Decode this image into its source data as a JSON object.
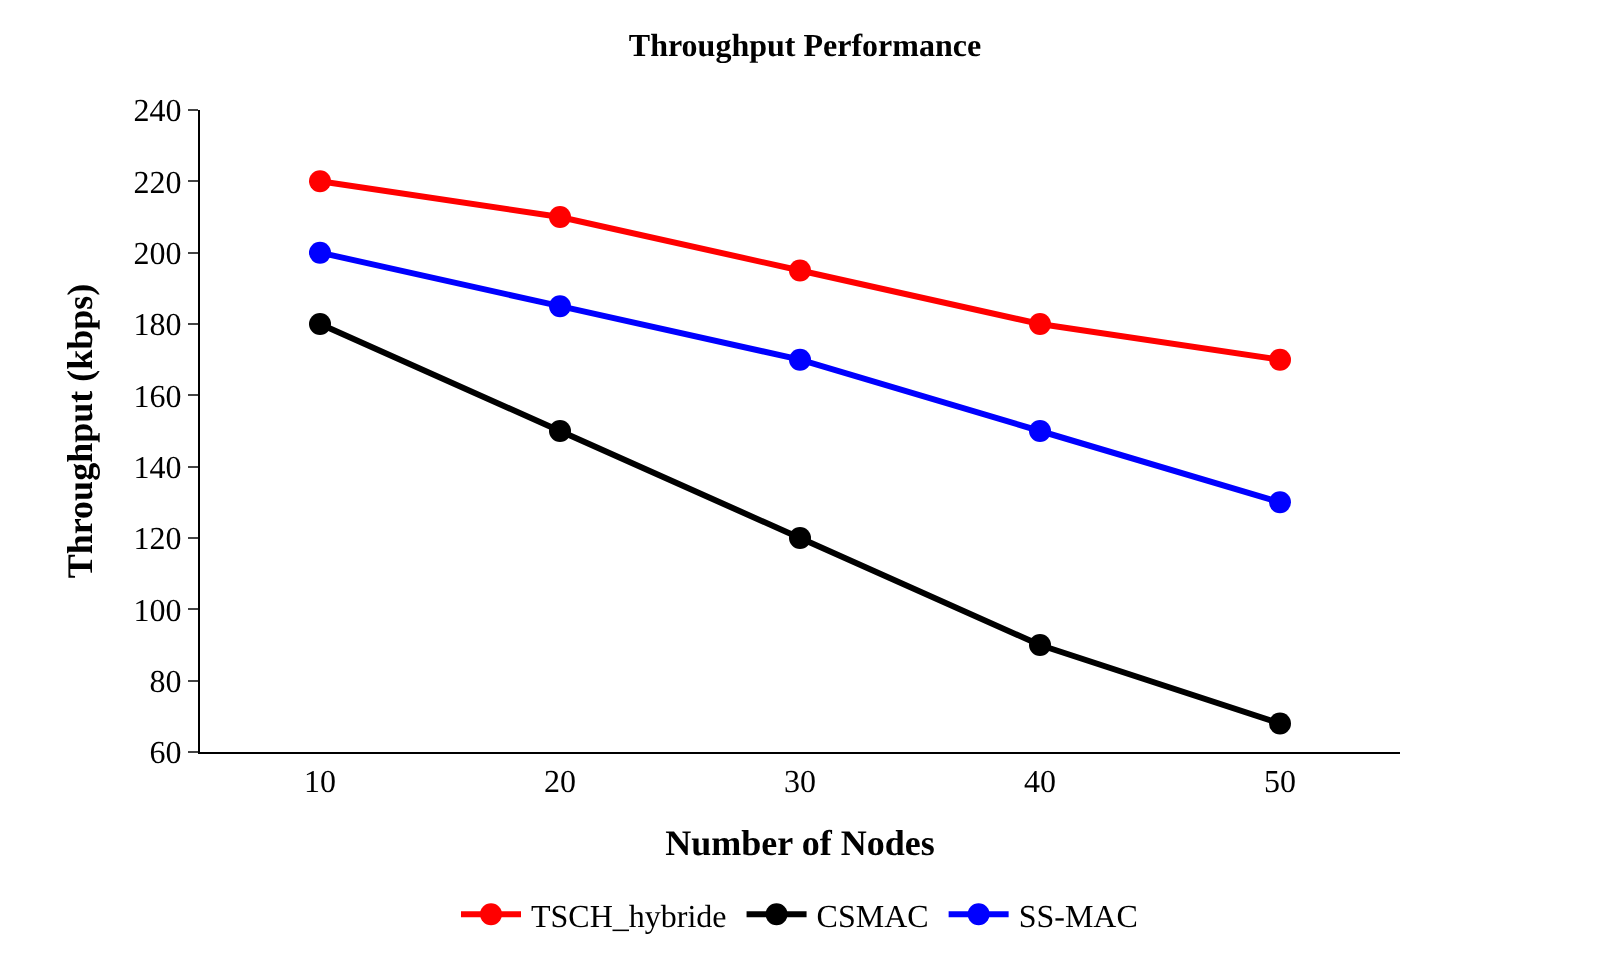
{
  "chart_data": {
    "type": "line",
    "title": "Throughput Performance",
    "xlabel": "Number of Nodes",
    "ylabel": "Throughput (kbps)",
    "categories": [
      "10",
      "20",
      "30",
      "40",
      "50"
    ],
    "series": [
      {
        "name": "TSCH_hybride",
        "color": "#ff0000",
        "values": [
          220,
          210,
          195,
          180,
          170
        ]
      },
      {
        "name": "CSMAC",
        "color": "#000000",
        "values": [
          180,
          150,
          120,
          90,
          68
        ]
      },
      {
        "name": "SS-MAC",
        "color": "#0000ff",
        "values": [
          200,
          185,
          170,
          150,
          130
        ]
      }
    ],
    "ylim": [
      60,
      240
    ],
    "yticks": [
      60,
      80,
      100,
      120,
      140,
      160,
      180,
      200,
      220,
      240
    ],
    "legend": "bottom",
    "marker": "circle",
    "line_style": "solid"
  }
}
